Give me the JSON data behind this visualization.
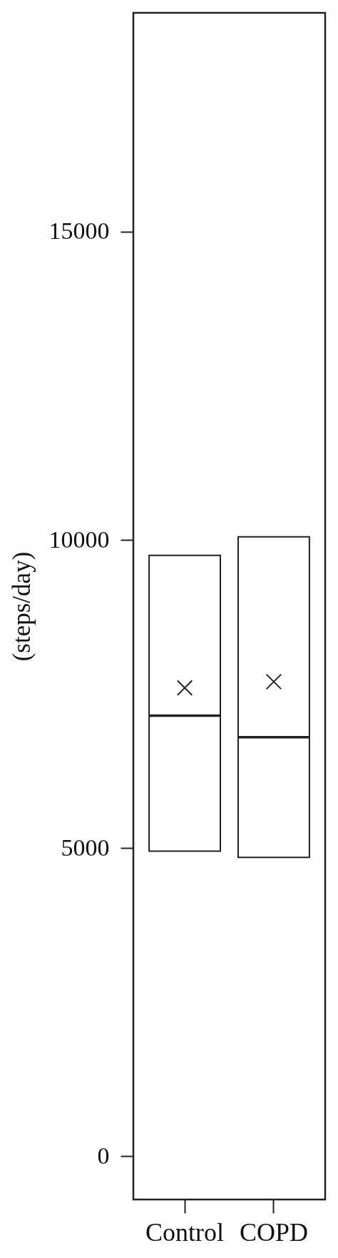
{
  "chart_data": {
    "type": "box",
    "ylabel": "(steps/day)",
    "categories": [
      "Control",
      "COPD"
    ],
    "color": "#222222",
    "boxes": [
      {
        "low": 4950,
        "q1": 4950,
        "median": 7150,
        "q3": 9750,
        "high": 9750,
        "mean": 7600
      },
      {
        "low": 4850,
        "q1": 4850,
        "median": 6800,
        "q3": 10050,
        "high": 10050,
        "mean": 7700
      }
    ],
    "ylim": [
      -700,
      18550
    ],
    "yticks": [
      0,
      5000,
      10000,
      15000
    ]
  }
}
